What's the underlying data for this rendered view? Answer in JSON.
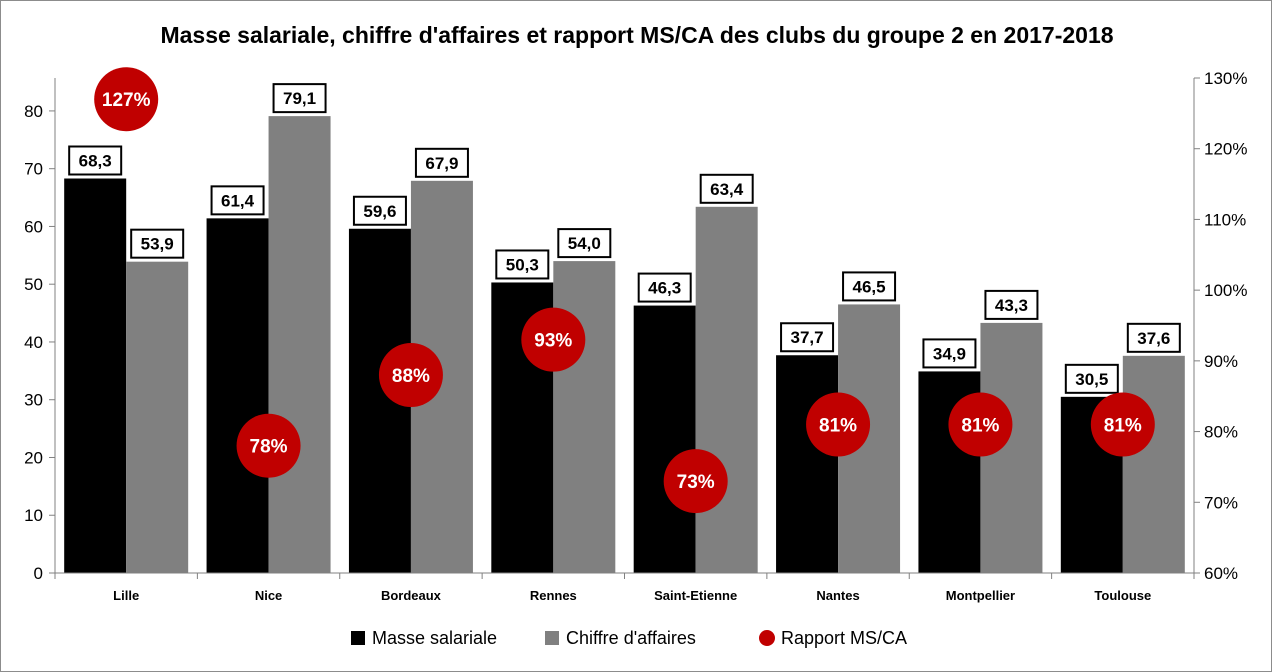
{
  "chart_data": {
    "type": "bar",
    "title": "Masse salariale, chiffre d'affaires et rapport MS/CA des clubs du groupe 2 en 2017-2018",
    "categories": [
      "Lille",
      "Nice",
      "Bordeaux",
      "Rennes",
      "Saint-Etienne",
      "Nantes",
      "Montpellier",
      "Toulouse"
    ],
    "series": [
      {
        "name": "Masse salariale",
        "type": "bar",
        "axis": "left",
        "color": "#000000",
        "values": [
          68.3,
          61.4,
          59.6,
          50.3,
          46.3,
          37.7,
          34.9,
          30.5
        ],
        "labels": [
          "68,3",
          "61,4",
          "59,6",
          "50,3",
          "46,3",
          "37,7",
          "34,9",
          "30,5"
        ]
      },
      {
        "name": "Chiffre d'affaires",
        "type": "bar",
        "axis": "left",
        "color": "#808080",
        "values": [
          53.9,
          79.1,
          67.9,
          54.0,
          63.4,
          46.5,
          43.3,
          37.6
        ],
        "labels": [
          "53,9",
          "79,1",
          "67,9",
          "54,0",
          "63,4",
          "46,5",
          "43,3",
          "37,6"
        ]
      },
      {
        "name": "Rapport MS/CA",
        "type": "scatter",
        "axis": "right",
        "color": "#c00000",
        "values": [
          127,
          78,
          88,
          93,
          73,
          81,
          81,
          81
        ],
        "labels": [
          "127%",
          "78%",
          "88%",
          "93%",
          "73%",
          "81%",
          "81%",
          "81%"
        ]
      }
    ],
    "y_left": {
      "min": 0,
      "max": 85.7,
      "ticks": [
        0,
        10,
        20,
        30,
        40,
        50,
        60,
        70,
        80
      ],
      "tick_labels": [
        "0",
        "10",
        "20",
        "30",
        "40",
        "50",
        "60",
        "70",
        "80"
      ]
    },
    "y_right": {
      "min": 60,
      "max": 130,
      "ticks": [
        60,
        70,
        80,
        90,
        100,
        110,
        120,
        130
      ],
      "tick_labels": [
        "60%",
        "70%",
        "80%",
        "90%",
        "100%",
        "110%",
        "120%",
        "130%"
      ]
    },
    "grid": false,
    "legend": "bottom"
  }
}
